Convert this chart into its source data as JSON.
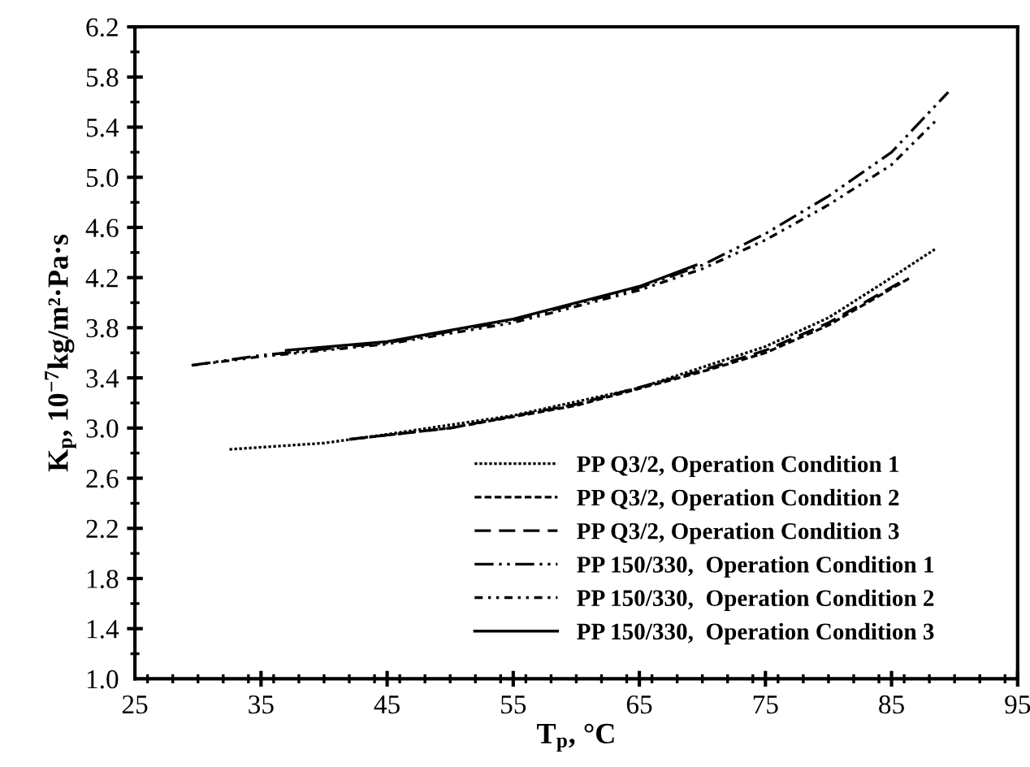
{
  "chart_data": {
    "type": "line",
    "xlabel": "T$_{p}$, °C",
    "ylabel": "K$_{p}$, 10$^{−7}$kg/m²·Pa·s",
    "xlim": [
      25,
      95
    ],
    "xticks": [
      25,
      35,
      45,
      55,
      65,
      75,
      85,
      95
    ],
    "ylim": [
      1.0,
      6.2
    ],
    "yticks": [
      {
        "value": 1.0,
        "label": "1.0"
      },
      {
        "value": 1.4,
        "label": "1.4"
      },
      {
        "value": 1.8,
        "label": "1.8"
      },
      {
        "value": 2.2,
        "label": "2.2"
      },
      {
        "value": 2.6,
        "label": "2.6"
      },
      {
        "value": 3.0,
        "label": "3.0"
      },
      {
        "value": 3.4,
        "label": "3.4"
      },
      {
        "value": 3.8,
        "label": "3.8"
      },
      {
        "value": 4.2,
        "label": "4.2"
      },
      {
        "value": 4.6,
        "label": "4.6"
      },
      {
        "value": 5.0,
        "label": "5.0"
      },
      {
        "value": 5.4,
        "label": "5.4"
      },
      {
        "value": 5.8,
        "label": "5.8"
      },
      {
        "value": 6.2,
        "label": "6.2"
      }
    ],
    "grid": false,
    "legend": "bottom right",
    "marker": "none",
    "series": [
      {
        "name": "PP Q3/2, Operation Condition 1",
        "color": "#000000",
        "line_style": "dotted",
        "x": [
          32.5,
          40,
          45,
          55,
          65,
          75,
          80,
          85,
          88.5
        ],
        "values": [
          2.83,
          2.88,
          2.95,
          3.1,
          3.32,
          3.65,
          3.88,
          4.2,
          4.43
        ]
      },
      {
        "name": "PP Q3/2, Operation Condition 2",
        "color": "#000000",
        "line_style": "dashed",
        "x": [
          42,
          50,
          60,
          70,
          75,
          80,
          86.5
        ],
        "values": [
          2.91,
          3.0,
          3.18,
          3.45,
          3.6,
          3.82,
          4.2
        ]
      },
      {
        "name": "PP Q3/2, Operation Condition 3",
        "color": "#000000",
        "line_style": "longdash",
        "x": [
          42,
          50,
          60,
          70,
          75,
          80,
          86
        ],
        "values": [
          2.91,
          3.0,
          3.19,
          3.46,
          3.62,
          3.84,
          4.18
        ]
      },
      {
        "name": "PP 150/330,  Operation Condition 1",
        "color": "#000000",
        "line_style": "dashdotdot",
        "x": [
          29.5,
          35,
          45,
          55,
          65,
          70,
          75,
          80,
          85,
          89.5
        ],
        "values": [
          3.5,
          3.58,
          3.68,
          3.86,
          4.12,
          4.3,
          4.55,
          4.85,
          5.2,
          5.68
        ]
      },
      {
        "name": "PP 150/330,  Operation Condition 2",
        "color": "#000000",
        "line_style": "dashdot",
        "x": [
          29.5,
          35,
          45,
          55,
          65,
          70,
          75,
          80,
          85,
          88.5
        ],
        "values": [
          3.5,
          3.57,
          3.67,
          3.84,
          4.1,
          4.27,
          4.5,
          4.78,
          5.1,
          5.45
        ]
      },
      {
        "name": "PP 150/330,  Operation Condition 3",
        "color": "#000000",
        "line_style": "solid",
        "x": [
          37,
          45,
          55,
          65,
          69.5
        ],
        "values": [
          3.62,
          3.69,
          3.87,
          4.13,
          4.3
        ]
      }
    ]
  }
}
